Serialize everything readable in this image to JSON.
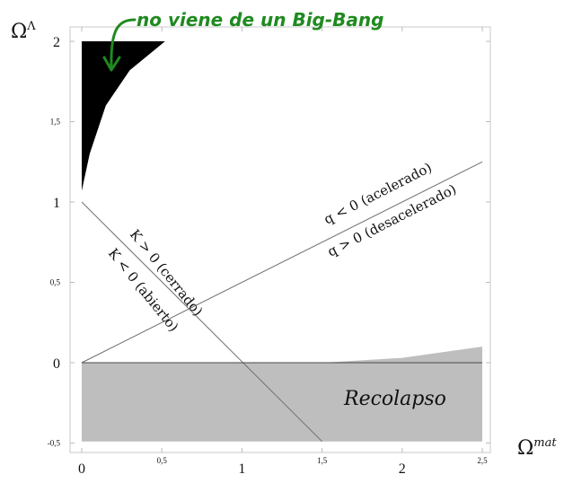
{
  "chart_data": {
    "type": "area",
    "title": "",
    "xlabel": "Ω",
    "xlabel_sup": "mat",
    "ylabel": "Ω",
    "ylabel_sup": "Λ",
    "xlim": [
      0,
      2.5
    ],
    "ylim": [
      -0.5,
      2
    ],
    "x_ticks": [
      {
        "value": 0,
        "label": "0",
        "small": false
      },
      {
        "value": 0.5,
        "label": "0,5",
        "small": true
      },
      {
        "value": 1,
        "label": "1",
        "small": false
      },
      {
        "value": 1.5,
        "label": "1,5",
        "small": true
      },
      {
        "value": 2,
        "label": "2",
        "small": false
      },
      {
        "value": 2.5,
        "label": "2,5",
        "small": true
      }
    ],
    "y_ticks": [
      {
        "value": 2,
        "label": "2",
        "small": false
      },
      {
        "value": 1.5,
        "label": "1,5",
        "small": true
      },
      {
        "value": 1,
        "label": "1",
        "small": false
      },
      {
        "value": 0.5,
        "label": "0,5",
        "small": true
      },
      {
        "value": 0,
        "label": "0",
        "small": false
      },
      {
        "value": -0.5,
        "label": "-0,5",
        "small": true
      }
    ],
    "colors": {
      "no_big_bang": "#000000",
      "recollapse": "#bebebe",
      "lines": "#6e6e6e",
      "annotation": "#1f8a1f"
    },
    "regions": [
      {
        "name": "no_big_bang",
        "points": [
          [
            0,
            1.07
          ],
          [
            0.05,
            1.3
          ],
          [
            0.15,
            1.6
          ],
          [
            0.3,
            1.82
          ],
          [
            0.52,
            2
          ],
          [
            0,
            2
          ]
        ]
      },
      {
        "name": "recollapse",
        "label": "Recolapso",
        "points": [
          [
            0,
            0
          ],
          [
            1.5,
            0
          ],
          [
            2,
            0.03
          ],
          [
            2.5,
            0.1
          ],
          [
            2.5,
            -0.49
          ],
          [
            0,
            -0.49
          ]
        ]
      }
    ],
    "lines": [
      {
        "name": "flat",
        "points": [
          [
            0,
            1
          ],
          [
            1.5,
            -0.49
          ]
        ]
      },
      {
        "name": "deceleration",
        "points": [
          [
            0,
            0
          ],
          [
            2.5,
            1.25
          ]
        ]
      },
      {
        "name": "zero",
        "points": [
          [
            0,
            0
          ],
          [
            2.5,
            0
          ]
        ]
      }
    ],
    "labels": {
      "flat_upper": "K > 0  (cerrado)",
      "flat_lower": "K < 0  (abierto)",
      "decel_upper": "q < 0 (acelerado)",
      "decel_lower": "q > 0 (desacelerado)"
    },
    "annotation": "no viene de un Big-Bang"
  }
}
